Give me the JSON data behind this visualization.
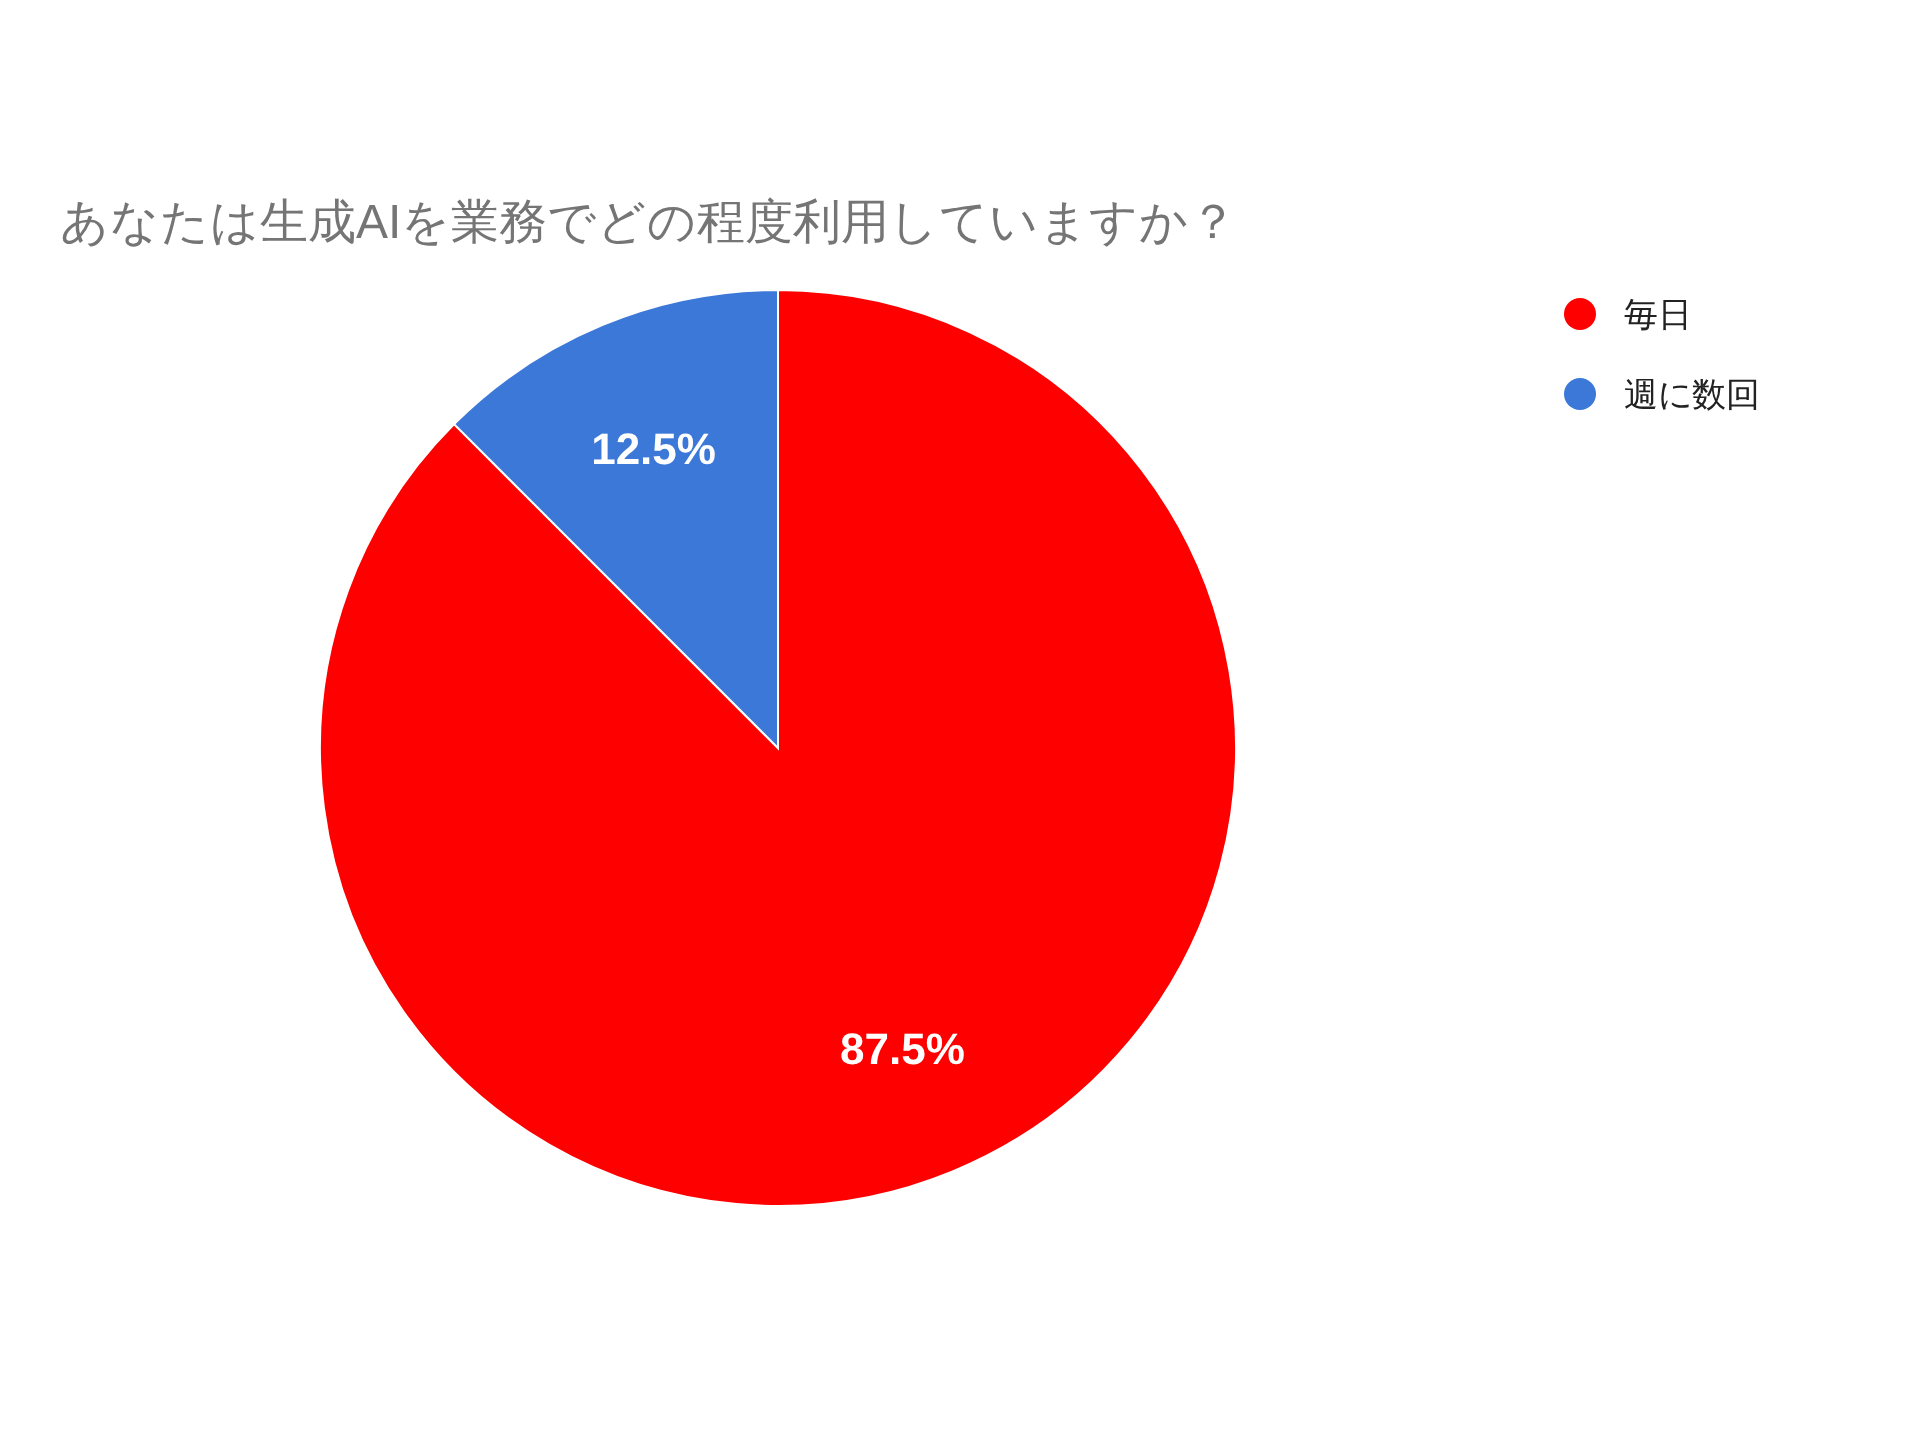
{
  "chart_data": {
    "type": "pie",
    "title": "あなたは生成AIを業務でどの程度利用していますか？",
    "categories": [
      "毎日",
      "週に数回"
    ],
    "values": [
      87.5,
      12.5
    ],
    "colors": [
      "#ff0000",
      "#3c78d8"
    ],
    "value_labels": [
      "87.5%",
      "12.5%"
    ],
    "legend": "top right"
  }
}
